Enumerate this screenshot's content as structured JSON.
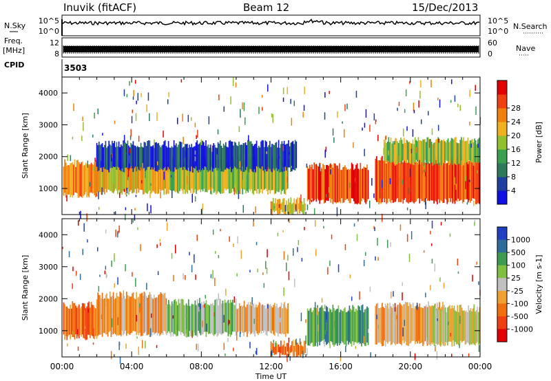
{
  "header": {
    "station": "Inuvik (fitACF)",
    "beam": "Beam 12",
    "date": "15/Dec/2013"
  },
  "strip_labels": {
    "nsky": "N.Sky",
    "nsearch": "N.Search",
    "freq_line1": "Freq.",
    "freq_line2": "[MHz]",
    "nave": "Nave",
    "cpid": "CPID",
    "cpid_value": "3503"
  },
  "strip_ticks": {
    "nsky_left": [
      "10^5",
      "10^0"
    ],
    "nsky_right": [
      "10^5",
      "10^0"
    ],
    "freq_left": [
      "12",
      "8"
    ],
    "nave_right": [
      "60",
      "0"
    ]
  },
  "colors": {
    "power": [
      "#1010e0",
      "#1e3fa0",
      "#2e7a5a",
      "#3aa050",
      "#90c030",
      "#f0b020",
      "#f08010",
      "#f04010",
      "#e00000"
    ],
    "velocity": [
      "#2040c0",
      "#2e6c9a",
      "#3d9a50",
      "#80c040",
      "#c0c0c0",
      "#f0a030",
      "#f07010",
      "#f04010",
      "#e00000"
    ]
  },
  "chart_data": [
    {
      "type": "heatmap",
      "panel": "power",
      "title": "",
      "xlabel": "Time UT",
      "ylabel": "Slant Range [km]",
      "x_range_hours": [
        0,
        24
      ],
      "ylim": [
        180,
        4500
      ],
      "y_ticks": [
        "1000",
        "2000",
        "3000",
        "4000"
      ],
      "colorbar_label": "Power [dB]",
      "colorbar_ticks": [
        "4",
        "8",
        "12",
        "16",
        "20",
        "24",
        "28"
      ],
      "bands": [
        {
          "t0": 0.1,
          "t1": 2.0,
          "r0": 800,
          "r1": 1800,
          "level": 6
        },
        {
          "t0": 2.0,
          "t1": 6.0,
          "r0": 900,
          "r1": 1800,
          "level": 5
        },
        {
          "t0": 6.0,
          "t1": 13.0,
          "r0": 900,
          "r1": 1900,
          "level": 4
        },
        {
          "t0": 12.0,
          "t1": 14.0,
          "r0": 250,
          "r1": 600,
          "level": 5
        },
        {
          "t0": 14.1,
          "t1": 17.6,
          "r0": 600,
          "r1": 1700,
          "level": 7
        },
        {
          "t0": 18.0,
          "t1": 24.0,
          "r0": 600,
          "r1": 1900,
          "level": 7
        },
        {
          "t0": 2.0,
          "t1": 13.5,
          "r0": 1600,
          "r1": 2400,
          "level": 1
        },
        {
          "t0": 18.5,
          "t1": 24.0,
          "r0": 1800,
          "r1": 2500,
          "level": 4
        }
      ]
    },
    {
      "type": "heatmap",
      "panel": "velocity",
      "title": "",
      "xlabel": "Time UT",
      "ylabel": "Slant Range [km]",
      "x_range_hours": [
        0,
        24
      ],
      "x_ticks": [
        "00:00",
        "04:00",
        "08:00",
        "12:00",
        "16:00",
        "20:00",
        "00:00"
      ],
      "ylim": [
        180,
        4500
      ],
      "y_ticks": [
        "1000",
        "2000",
        "3000",
        "4000"
      ],
      "colorbar_label": "Velocity [m s-1]",
      "colorbar_ticks": [
        "1000",
        "500",
        "100",
        "25",
        "-25",
        "-100",
        "-500",
        "-1000"
      ],
      "bands": [
        {
          "t0": 0.1,
          "t1": 2.0,
          "r0": 800,
          "r1": 1800,
          "level": 6
        },
        {
          "t0": 2.0,
          "t1": 6.0,
          "r0": 900,
          "r1": 2100,
          "level": 5
        },
        {
          "t0": 6.0,
          "t1": 10.0,
          "r0": 900,
          "r1": 1900,
          "level": 3
        },
        {
          "t0": 10.0,
          "t1": 13.0,
          "r0": 900,
          "r1": 1800,
          "level": 5
        },
        {
          "t0": 12.0,
          "t1": 14.0,
          "r0": 250,
          "r1": 600,
          "level": 6
        },
        {
          "t0": 14.1,
          "t1": 17.6,
          "r0": 600,
          "r1": 1700,
          "level": 2
        },
        {
          "t0": 18.0,
          "t1": 22.0,
          "r0": 600,
          "r1": 1800,
          "level": 5
        },
        {
          "t0": 21.0,
          "t1": 24.0,
          "r0": 600,
          "r1": 1700,
          "level": 4
        }
      ]
    }
  ]
}
